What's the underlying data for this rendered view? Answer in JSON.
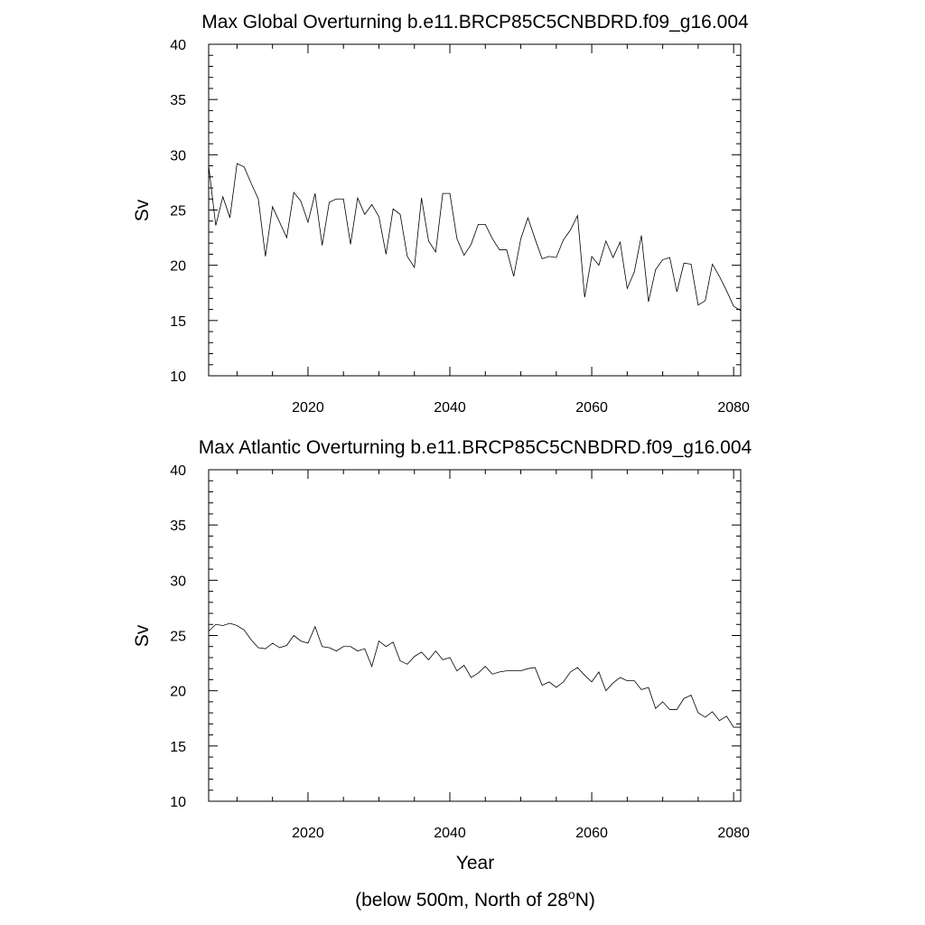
{
  "chart_data": [
    {
      "type": "line",
      "title": "Max Global Overturning b.e11.BRCP85C5CNBDRD.f09_g16.004",
      "xlabel": "",
      "ylabel": "Sv",
      "xlim": [
        2006,
        2081
      ],
      "ylim": [
        10,
        40
      ],
      "xticks": [
        "2020",
        "2040",
        "2060",
        "2080"
      ],
      "yticks": [
        "10",
        "15",
        "20",
        "25",
        "30",
        "35",
        "40"
      ],
      "grid": false,
      "series": [
        {
          "x": [
            2006,
            2007,
            2008,
            2009,
            2010,
            2011,
            2012,
            2013,
            2014,
            2015,
            2016,
            2017,
            2018,
            2019,
            2020,
            2021,
            2022,
            2023,
            2024,
            2025,
            2026,
            2027,
            2028,
            2029,
            2030,
            2031,
            2032,
            2033,
            2034,
            2035,
            2036,
            2037,
            2038,
            2039,
            2040,
            2041,
            2042,
            2043,
            2044,
            2045,
            2046,
            2047,
            2048,
            2049,
            2050,
            2051,
            2052,
            2053,
            2054,
            2055,
            2056,
            2057,
            2058,
            2059,
            2060,
            2061,
            2062,
            2063,
            2064,
            2065,
            2066,
            2067,
            2068,
            2069,
            2070,
            2071,
            2072,
            2073,
            2074,
            2075,
            2076,
            2077,
            2078,
            2079,
            2080,
            2081
          ],
          "values": [
            29.0,
            23.6,
            26.2,
            24.3,
            29.2,
            28.9,
            27.4,
            26.0,
            20.8,
            25.3,
            23.9,
            22.5,
            26.6,
            25.8,
            23.9,
            26.5,
            21.8,
            25.7,
            26.0,
            26.0,
            21.9,
            26.1,
            24.6,
            25.5,
            24.4,
            21.0,
            25.1,
            24.6,
            20.8,
            19.8,
            26.1,
            22.2,
            21.2,
            26.5,
            26.5,
            22.4,
            20.9,
            21.9,
            23.7,
            23.7,
            22.4,
            21.4,
            21.4,
            19.0,
            22.4,
            24.3,
            22.4,
            20.6,
            20.8,
            20.7,
            22.3,
            23.2,
            24.5,
            17.1,
            20.8,
            20.0,
            22.2,
            20.7,
            22.1,
            17.9,
            19.4,
            22.7,
            16.7,
            19.6,
            20.5,
            20.7,
            17.6,
            20.2,
            20.1,
            16.4,
            16.8,
            20.1,
            19.0,
            17.7,
            16.3,
            15.9
          ]
        }
      ]
    },
    {
      "type": "line",
      "title": "Max Atlantic Overturning b.e11.BRCP85C5CNBDRD.f09_g16.004",
      "xlabel": "Year",
      "ylabel": "Sv",
      "xlim": [
        2006,
        2081
      ],
      "ylim": [
        10,
        40
      ],
      "xticks": [
        "2020",
        "2040",
        "2060",
        "2080"
      ],
      "yticks": [
        "10",
        "15",
        "20",
        "25",
        "30",
        "35",
        "40"
      ],
      "grid": false,
      "series": [
        {
          "x": [
            2006,
            2007,
            2008,
            2009,
            2010,
            2011,
            2012,
            2013,
            2014,
            2015,
            2016,
            2017,
            2018,
            2019,
            2020,
            2021,
            2022,
            2023,
            2024,
            2025,
            2026,
            2027,
            2028,
            2029,
            2030,
            2031,
            2032,
            2033,
            2034,
            2035,
            2036,
            2037,
            2038,
            2039,
            2040,
            2041,
            2042,
            2043,
            2044,
            2045,
            2046,
            2047,
            2048,
            2049,
            2050,
            2051,
            2052,
            2053,
            2054,
            2055,
            2056,
            2057,
            2058,
            2059,
            2060,
            2061,
            2062,
            2063,
            2064,
            2065,
            2066,
            2067,
            2068,
            2069,
            2070,
            2071,
            2072,
            2073,
            2074,
            2075,
            2076,
            2077,
            2078,
            2079,
            2080,
            2081
          ],
          "values": [
            25.4,
            26.0,
            25.9,
            26.1,
            25.9,
            25.5,
            24.6,
            23.9,
            23.8,
            24.3,
            23.9,
            24.1,
            25.0,
            24.5,
            24.3,
            25.8,
            24.0,
            23.9,
            23.6,
            24.0,
            24.0,
            23.6,
            23.8,
            22.2,
            24.5,
            24.0,
            24.4,
            22.7,
            22.4,
            23.1,
            23.5,
            22.8,
            23.6,
            22.8,
            23.0,
            21.8,
            22.3,
            21.2,
            21.6,
            22.2,
            21.5,
            21.7,
            21.8,
            21.8,
            21.8,
            22.0,
            22.1,
            20.5,
            20.8,
            20.3,
            20.8,
            21.7,
            22.1,
            21.4,
            20.8,
            21.7,
            20.0,
            20.7,
            21.2,
            20.9,
            20.9,
            20.1,
            20.3,
            18.4,
            19.0,
            18.3,
            18.3,
            19.3,
            19.6,
            18.0,
            17.6,
            18.1,
            17.3,
            17.7,
            16.7,
            16.7
          ]
        }
      ]
    }
  ],
  "footnote": {
    "prefix": "(below 500m, North of 28",
    "superscript": "o",
    "suffix": "N)"
  }
}
